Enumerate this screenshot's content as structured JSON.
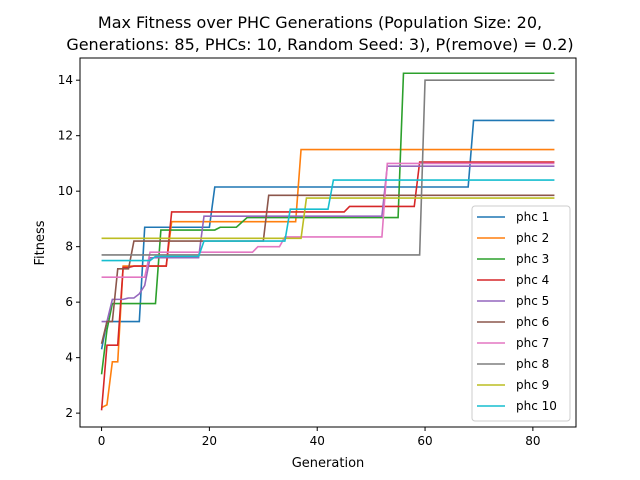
{
  "chart_data": {
    "type": "line",
    "step": true,
    "title_lines": [
      "Max Fitness over PHC Generations (Population Size: 20,",
      "Generations: 85, PHCs: 10, Random Seed: 3), P(remove) = 0.2)"
    ],
    "xlabel": "Generation",
    "ylabel": "Fitness",
    "xlim": [
      -4,
      88
    ],
    "ylim": [
      1.5,
      14.8
    ],
    "xticks": [
      0,
      20,
      40,
      60,
      80
    ],
    "yticks": [
      2,
      4,
      6,
      8,
      10,
      12,
      14
    ],
    "legend_location": "lower right",
    "series": [
      {
        "name": "phc 1",
        "color": "#1f77b4",
        "points": [
          [
            0,
            4.3
          ],
          [
            1,
            5.3
          ],
          [
            7,
            5.3
          ],
          [
            8,
            8.7
          ],
          [
            20,
            8.7
          ],
          [
            21,
            10.15
          ],
          [
            68,
            10.15
          ],
          [
            69,
            12.55
          ],
          [
            84,
            12.55
          ]
        ]
      },
      {
        "name": "phc 2",
        "color": "#ff7f0e",
        "points": [
          [
            0,
            2.2
          ],
          [
            1,
            2.3
          ],
          [
            2,
            3.85
          ],
          [
            3,
            3.85
          ],
          [
            4,
            7.3
          ],
          [
            12,
            7.3
          ],
          [
            13,
            8.9
          ],
          [
            36,
            8.9
          ],
          [
            37,
            11.5
          ],
          [
            84,
            11.5
          ]
        ]
      },
      {
        "name": "phc 3",
        "color": "#2ca02c",
        "points": [
          [
            0,
            3.4
          ],
          [
            1,
            5.0
          ],
          [
            2,
            5.95
          ],
          [
            10,
            5.95
          ],
          [
            11,
            8.6
          ],
          [
            21,
            8.6
          ],
          [
            22,
            8.7
          ],
          [
            25,
            8.7
          ],
          [
            27,
            9.05
          ],
          [
            55,
            9.05
          ],
          [
            56,
            14.25
          ],
          [
            84,
            14.25
          ]
        ]
      },
      {
        "name": "phc 4",
        "color": "#d62728",
        "points": [
          [
            0,
            2.1
          ],
          [
            1,
            4.45
          ],
          [
            3,
            4.45
          ],
          [
            4,
            7.25
          ],
          [
            5,
            7.25
          ],
          [
            6,
            7.3
          ],
          [
            12,
            7.3
          ],
          [
            13,
            9.25
          ],
          [
            45,
            9.25
          ],
          [
            46,
            9.45
          ],
          [
            58,
            9.45
          ],
          [
            59,
            11.05
          ],
          [
            84,
            11.05
          ]
        ]
      },
      {
        "name": "phc 5",
        "color": "#9467bd",
        "points": [
          [
            0,
            5.3
          ],
          [
            1,
            5.3
          ],
          [
            2,
            6.1
          ],
          [
            4,
            6.1
          ],
          [
            5,
            6.15
          ],
          [
            6,
            6.15
          ],
          [
            7,
            6.3
          ],
          [
            8,
            6.6
          ],
          [
            9,
            7.6
          ],
          [
            18,
            7.6
          ],
          [
            19,
            9.1
          ],
          [
            52,
            9.1
          ],
          [
            53,
            10.9
          ],
          [
            84,
            10.9
          ]
        ]
      },
      {
        "name": "phc 6",
        "color": "#8c564b",
        "points": [
          [
            0,
            4.5
          ],
          [
            1,
            5.3
          ],
          [
            2,
            5.3
          ],
          [
            3,
            7.2
          ],
          [
            5,
            7.2
          ],
          [
            6,
            8.2
          ],
          [
            30,
            8.2
          ],
          [
            31,
            9.85
          ],
          [
            84,
            9.85
          ]
        ]
      },
      {
        "name": "phc 7",
        "color": "#e377c2",
        "points": [
          [
            0,
            6.9
          ],
          [
            8,
            6.9
          ],
          [
            9,
            7.8
          ],
          [
            28,
            7.8
          ],
          [
            29,
            8.0
          ],
          [
            33,
            8.0
          ],
          [
            34,
            8.35
          ],
          [
            52,
            8.35
          ],
          [
            53,
            11.0
          ],
          [
            84,
            11.0
          ]
        ]
      },
      {
        "name": "phc 8",
        "color": "#7f7f7f",
        "points": [
          [
            0,
            7.7
          ],
          [
            59,
            7.7
          ],
          [
            60,
            14.0
          ],
          [
            84,
            14.0
          ]
        ]
      },
      {
        "name": "phc 9",
        "color": "#bcbd22",
        "points": [
          [
            0,
            8.3
          ],
          [
            37,
            8.3
          ],
          [
            38,
            9.75
          ],
          [
            84,
            9.75
          ]
        ]
      },
      {
        "name": "phc 10",
        "color": "#17becf",
        "points": [
          [
            0,
            7.5
          ],
          [
            9,
            7.5
          ],
          [
            10,
            7.65
          ],
          [
            18,
            7.65
          ],
          [
            19,
            8.2
          ],
          [
            34,
            8.2
          ],
          [
            35,
            9.35
          ],
          [
            42,
            9.35
          ],
          [
            43,
            10.4
          ],
          [
            84,
            10.4
          ]
        ]
      }
    ]
  }
}
